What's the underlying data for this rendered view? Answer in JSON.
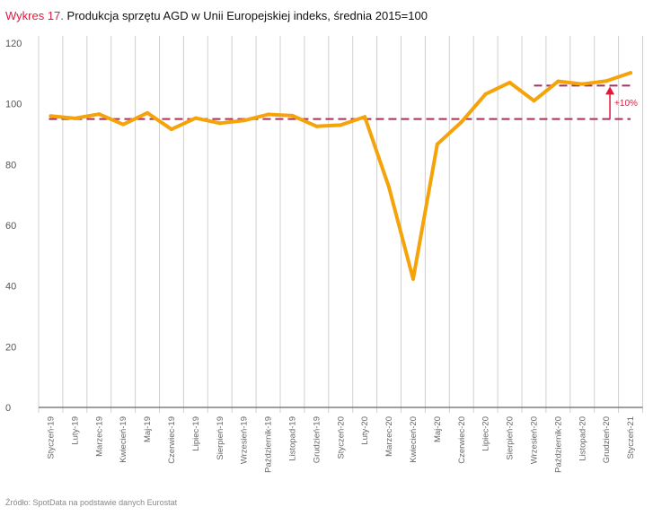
{
  "title": {
    "prefix": "Wykres 17.",
    "text": "Produkcja sprzętu AGD w Unii Europejskiej indeks, średnia 2015=100"
  },
  "source": "Źródło: SpotData na podstawie danych Eurostat",
  "chart_data": {
    "type": "line",
    "categories": [
      "Styczeń-19",
      "Luty-19",
      "Marzec-19",
      "Kwiecień-19",
      "Maj-19",
      "Czerwiec-19",
      "Lipiec-19",
      "Sierpień-19",
      "Wrzesień-19",
      "Październik-19",
      "Listopad-19",
      "Grudzień-19",
      "Styczeń-20",
      "Luty-20",
      "Marzec-20",
      "Kwiecień-20",
      "Maj-20",
      "Czerwiec-20",
      "Lipiec-20",
      "Sierpień-20",
      "Wrzesień-20",
      "Październik-20",
      "Listopad-20",
      "Grudzień-20",
      "Styczeń-21"
    ],
    "values": [
      96,
      95.2,
      96.6,
      93.2,
      97,
      91.6,
      95.3,
      93.6,
      94.5,
      96.5,
      96.1,
      92.6,
      93,
      95.7,
      72.5,
      42.3,
      86.7,
      94,
      103.2,
      107,
      101,
      107.4,
      106.5,
      107.5,
      110.2
    ],
    "ylim": [
      0,
      120
    ],
    "yticks": [
      0,
      20,
      40,
      60,
      80,
      100,
      120
    ],
    "reference_lines": [
      {
        "value": 95,
        "from": "Styczeń-19",
        "to": "Styczeń-21"
      },
      {
        "value": 106,
        "from": "Wrzesień-20",
        "to": "Styczeń-21"
      }
    ],
    "annotation": "+10%",
    "grid": "vertical only",
    "colors": {
      "line": "#f5a30a",
      "reference": "#a8325e",
      "annotation": "#e3173e",
      "grid": "#d0d0d0"
    }
  }
}
